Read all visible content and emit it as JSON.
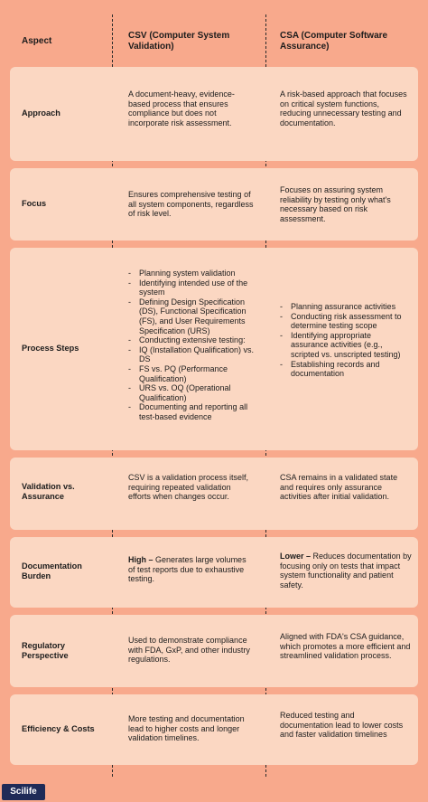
{
  "header": {
    "aspect": "Aspect",
    "csv": "CSV (Computer System Validation)",
    "csa": "CSA (Computer Software Assurance)"
  },
  "rows": [
    {
      "aspect": "Approach",
      "csv": "A document-heavy, evidence-based process that ensures compliance but does not incorporate risk assessment.",
      "csa": "A risk-based approach that focuses on critical system functions, reducing unnecessary testing and documentation."
    },
    {
      "aspect": "Focus",
      "csv": "Ensures comprehensive testing of all system components, regardless of risk level.",
      "csa": "Focuses on assuring system reliability by testing only what's necessary based on risk assessment."
    },
    {
      "aspect": "Process Steps",
      "csv_items": [
        "Planning system validation",
        "Identifying intended use of the system",
        "Defining Design Specification (DS), Functional Specification (FS), and User Requirements Specification (URS)",
        "Conducting extensive testing:",
        "IQ (Installation Qualification) vs. DS",
        "FS vs. PQ (Performance Qualification)",
        "URS vs. OQ (Operational Qualification)",
        "Documenting and reporting all test-based evidence"
      ],
      "csa_items": [
        "Planning assurance activities",
        "Conducting risk assessment to determine testing scope",
        "Identifying appropriate assurance activities (e.g., scripted vs. unscripted testing)",
        "Establishing records and documentation"
      ]
    },
    {
      "aspect": "Validation vs. Assurance",
      "csv": "CSV is a validation process itself, requiring repeated validation efforts when changes occur.",
      "csa": "CSA remains in a validated state and requires only assurance activities after initial validation."
    },
    {
      "aspect": "Documentation Burden",
      "csv_bold": "High –",
      "csv": " Generates large volumes of test reports due to exhaustive testing.",
      "csa_bold": "Lower –",
      "csa": " Reduces documentation by focusing only on tests that impact system functionality and patient safety."
    },
    {
      "aspect": "Regulatory Perspective",
      "csv": "Used to demonstrate compliance with FDA, GxP, and other industry regulations.",
      "csa": "Aligned with FDA's CSA guidance, which promotes a more efficient and streamlined validation process."
    },
    {
      "aspect": "Efficiency & Costs",
      "csv": "More testing and documentation lead to higher costs and longer validation timelines.",
      "csa": "Reduced testing and documentation lead to lower costs and faster validation timelines"
    }
  ],
  "brand": "Scilife"
}
